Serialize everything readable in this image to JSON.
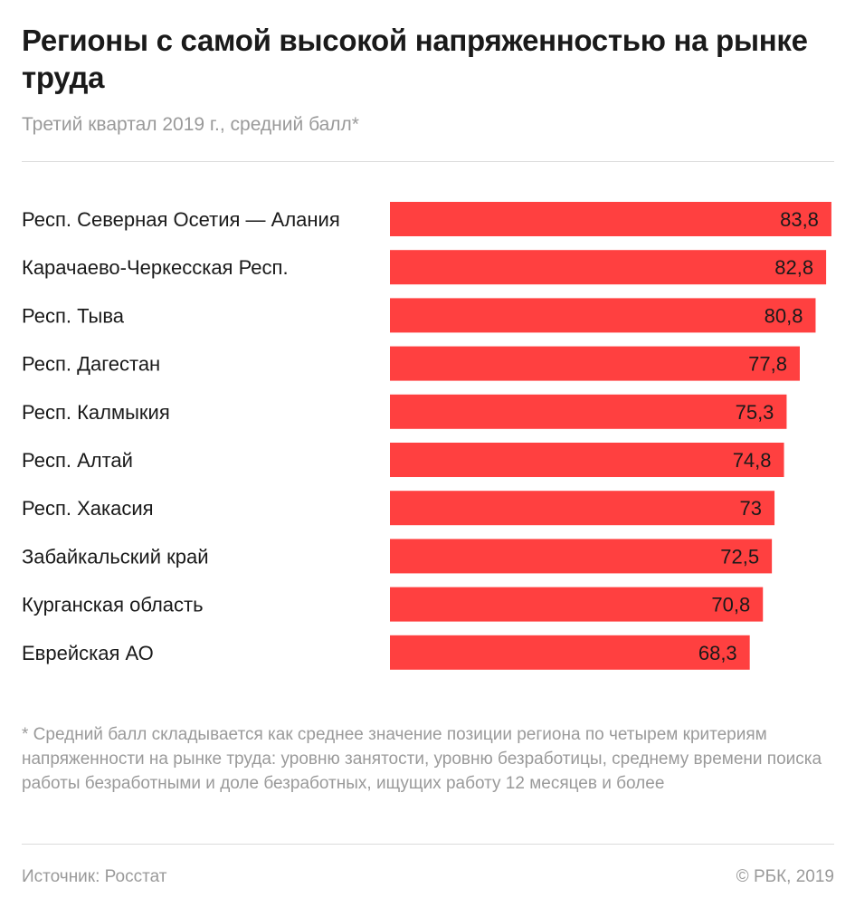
{
  "chart_data": {
    "type": "bar",
    "orientation": "horizontal",
    "title": "Регионы с самой высокой напряженностью на рынке труда",
    "subtitle": "Третий квартал 2019 г., средний балл*",
    "categories": [
      "Респ. Северная Осетия — Алания",
      "Карачаево-Черкесская Респ.",
      "Респ. Тыва",
      "Респ. Дагестан",
      "Респ. Калмыкия",
      "Респ. Алтай",
      "Респ. Хакасия",
      "Забайкальский край",
      "Курганская область",
      "Еврейская АО"
    ],
    "values": [
      83.8,
      82.8,
      80.8,
      77.8,
      75.3,
      74.8,
      73,
      72.5,
      70.8,
      68.3
    ],
    "value_labels": [
      "83,8",
      "82,8",
      "80,8",
      "77,8",
      "75,3",
      "74,8",
      "73",
      "72,5",
      "70,8",
      "68,3"
    ],
    "xlim": [
      0,
      84.5
    ],
    "bar_color": "#ff4040",
    "grid": false,
    "xlabel": "",
    "ylabel": ""
  },
  "footnote": "* Средний балл складывается как среднее значение позиции региона по четырем критериям напряженности на рынке труда: уровню занятости, уровню безработицы, среднему времени поиска работы безработными и доле безработных, ищущих работу 12 месяцев и более",
  "source": "Источник: Росстат",
  "copyright": "© РБК, 2019"
}
